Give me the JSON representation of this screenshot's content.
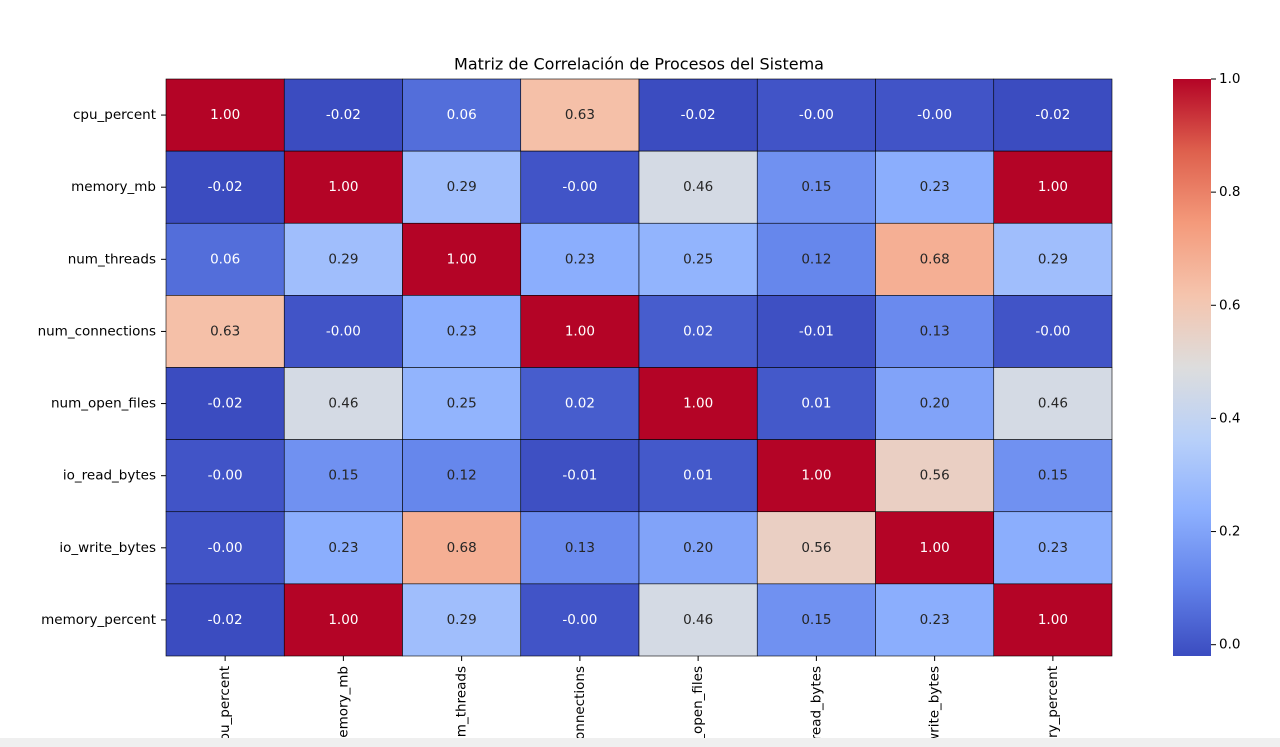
{
  "chart_data": {
    "type": "heatmap",
    "title": "Matriz de Correlación de Procesos del Sistema",
    "categories": [
      "cpu_percent",
      "memory_mb",
      "num_threads",
      "num_connections",
      "num_open_files",
      "io_read_bytes",
      "io_write_bytes",
      "memory_percent"
    ],
    "values": [
      [
        1,
        -0.02,
        0.06,
        0.63,
        -0.02,
        0,
        0,
        -0.02
      ],
      [
        -0.02,
        1,
        0.29,
        0,
        0.46,
        0.15,
        0.23,
        1
      ],
      [
        0.06,
        0.29,
        1,
        0.23,
        0.25,
        0.12,
        0.68,
        0.29
      ],
      [
        0.63,
        0,
        0.23,
        1,
        0.02,
        -0.01,
        0.13,
        0
      ],
      [
        -0.02,
        0.46,
        0.25,
        0.02,
        1,
        0.01,
        0.2,
        0.46
      ],
      [
        0,
        0.15,
        0.12,
        -0.01,
        0.01,
        1,
        0.56,
        0.15
      ],
      [
        0,
        0.23,
        0.68,
        0.13,
        0.2,
        0.56,
        1,
        0.23
      ],
      [
        -0.02,
        1,
        0.29,
        0,
        0.46,
        0.15,
        0.23,
        1
      ]
    ],
    "value_labels": [
      [
        "1.00",
        "-0.02",
        "0.06",
        "0.63",
        "-0.02",
        "-0.00",
        "-0.00",
        "-0.02"
      ],
      [
        "-0.02",
        "1.00",
        "0.29",
        "-0.00",
        "0.46",
        "0.15",
        "0.23",
        "1.00"
      ],
      [
        "0.06",
        "0.29",
        "1.00",
        "0.23",
        "0.25",
        "0.12",
        "0.68",
        "0.29"
      ],
      [
        "0.63",
        "-0.00",
        "0.23",
        "1.00",
        "0.02",
        "-0.01",
        "0.13",
        "-0.00"
      ],
      [
        "-0.02",
        "0.46",
        "0.25",
        "0.02",
        "1.00",
        "0.01",
        "0.20",
        "0.46"
      ],
      [
        "-0.00",
        "0.15",
        "0.12",
        "-0.01",
        "0.01",
        "1.00",
        "0.56",
        "0.15"
      ],
      [
        "-0.00",
        "0.23",
        "0.68",
        "0.13",
        "0.20",
        "0.56",
        "1.00",
        "0.23"
      ],
      [
        "-0.02",
        "1.00",
        "0.29",
        "-0.00",
        "0.46",
        "0.15",
        "0.23",
        "1.00"
      ]
    ],
    "colormap": "coolwarm",
    "clim": [
      -0.02,
      1.0
    ],
    "cticks": [
      {
        "value": 0,
        "label": "0.0"
      },
      0.2,
      0.4,
      0.6,
      0.8,
      {
        "value": 1,
        "label": "1.0"
      }
    ]
  }
}
